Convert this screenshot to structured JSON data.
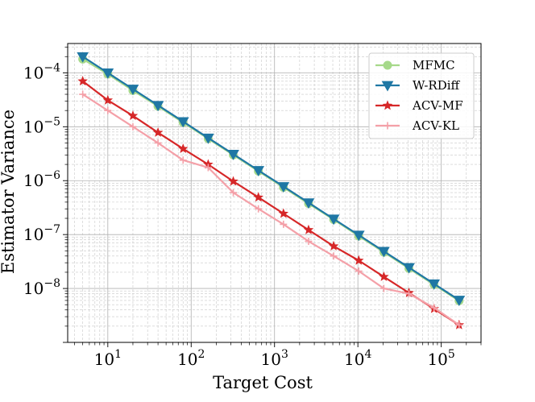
{
  "chart_data": {
    "type": "line",
    "title": "",
    "xlabel": "Target Cost",
    "ylabel": "Estimator Variance",
    "xscale": "log",
    "yscale": "log",
    "xlim": [
      3.3,
      300000
    ],
    "ylim": [
      1e-09,
      0.00035
    ],
    "grid": true,
    "legend_position": "top-right",
    "x_tick_labels": [
      {
        "base": "10",
        "exp": "1",
        "value": 10
      },
      {
        "base": "10",
        "exp": "2",
        "value": 100
      },
      {
        "base": "10",
        "exp": "3",
        "value": 1000
      },
      {
        "base": "10",
        "exp": "4",
        "value": 10000
      },
      {
        "base": "10",
        "exp": "5",
        "value": 100000
      }
    ],
    "y_tick_labels": [
      {
        "base": "10",
        "exp": "−8",
        "value": 1e-08
      },
      {
        "base": "10",
        "exp": "−7",
        "value": 1e-07
      },
      {
        "base": "10",
        "exp": "−6",
        "value": 1e-06
      },
      {
        "base": "10",
        "exp": "−5",
        "value": 1e-05
      },
      {
        "base": "10",
        "exp": "−4",
        "value": 0.0001
      }
    ],
    "x": [
      5,
      10,
      20,
      40,
      80,
      160,
      320,
      640,
      1280,
      2560,
      5120,
      10240,
      20480,
      40960,
      81920,
      163840
    ],
    "series": [
      {
        "name": "MFMC",
        "color": "#a6d98a",
        "marker": "circle",
        "values": [
          0.00018,
          9.5e-05,
          4.7e-05,
          2.4e-05,
          1.2e-05,
          6e-06,
          3e-06,
          1.5e-06,
          7.5e-07,
          3.75e-07,
          1.9e-07,
          9.4e-08,
          4.7e-08,
          2.35e-08,
          1.18e-08,
          5.9e-09
        ]
      },
      {
        "name": "W-RDiff",
        "color": "#1f77a4",
        "marker": "triangle-down",
        "values": [
          0.0002,
          0.0001,
          5e-05,
          2.5e-05,
          1.25e-05,
          6.2e-06,
          3.1e-06,
          1.55e-06,
          7.8e-07,
          3.9e-07,
          1.95e-07,
          9.8e-08,
          4.9e-08,
          2.45e-08,
          1.22e-08,
          6.1e-09
        ]
      },
      {
        "name": "ACV-MF",
        "color": "#d62728",
        "marker": "star",
        "values": [
          7e-05,
          3.1e-05,
          1.6e-05,
          7.8e-06,
          3.9e-06,
          2e-06,
          9.7e-07,
          4.9e-07,
          2.45e-07,
          1.22e-07,
          6.1e-08,
          3.3e-08,
          1.65e-08,
          8.3e-09,
          4.2e-09,
          2.1e-09
        ]
      },
      {
        "name": "ACV-KL",
        "color": "#f4a0a8",
        "marker": "plus",
        "values": [
          4e-05,
          2e-05,
          1e-05,
          5e-06,
          2.4e-06,
          1.75e-06,
          6e-07,
          3e-07,
          1.55e-07,
          7.5e-08,
          4e-08,
          2.1e-08,
          1e-08,
          8e-09,
          4.4e-09,
          2.1e-09
        ]
      }
    ]
  }
}
